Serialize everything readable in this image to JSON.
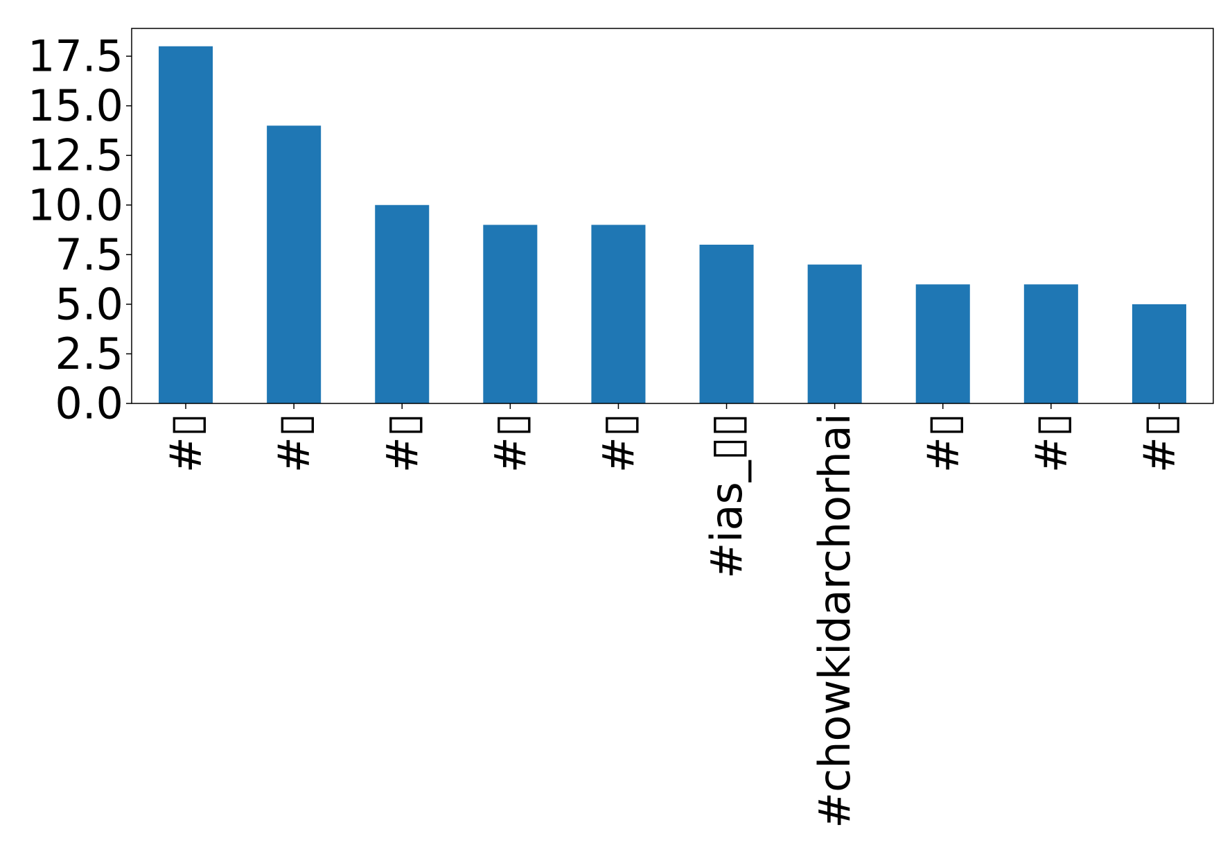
{
  "chart_data": {
    "type": "bar",
    "categories": [
      "#▯",
      "#▯",
      "#▯",
      "#▯",
      "#▯",
      "#ias_▯▯",
      "#chowkidarchorhai",
      "#▯",
      "#▯",
      "#▯"
    ],
    "values": [
      18,
      14,
      10,
      9,
      9,
      8,
      7,
      6,
      6,
      5
    ],
    "ylim": [
      0,
      18.9
    ],
    "yticks": [
      0.0,
      2.5,
      5.0,
      7.5,
      10.0,
      12.5,
      15.0,
      17.5
    ],
    "ytick_labels": [
      "0.0",
      "2.5",
      "5.0",
      "7.5",
      "10.0",
      "12.5",
      "15.0",
      "17.5"
    ],
    "grid": false,
    "legend": "none",
    "colors": {
      "bar": "#1f77b4",
      "axis": "#000000"
    }
  }
}
